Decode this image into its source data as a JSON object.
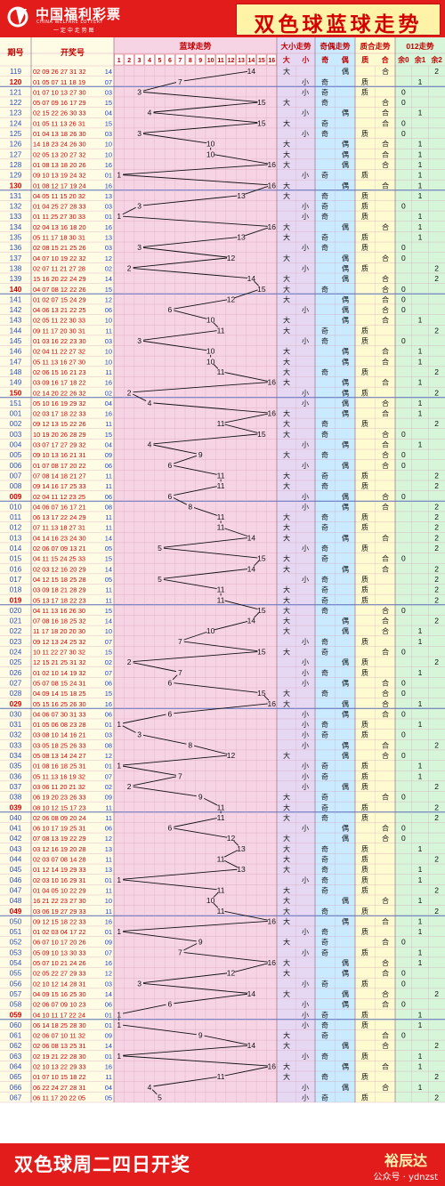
{
  "brand": {
    "name_cn": "中国福利彩票",
    "name_en": "CHINA WELFARE LOTTERY",
    "tagline": "一 定 中 走 势 图"
  },
  "title": "双色球蓝球走势",
  "footer": {
    "text": "双色球周二四日开奖",
    "brand": "裕辰达",
    "wechat": "公众号 · ydnzst"
  },
  "colors": {
    "red": "#e21b1b",
    "pink": "#f6d4e4",
    "blue_zone": "#dbe0ff",
    "lav": "#e6d8f3",
    "sky": "#c9eaff",
    "yellow": "#fffbd0",
    "green": "#d6f5d9",
    "line": "#111111"
  },
  "chart_data": {
    "type": "table",
    "columns": {
      "issue": "期号",
      "numbers": "开奖号",
      "blue": "蓝球走势",
      "size": "大小走势",
      "parity": "奇偶走势",
      "primality": "质合走势",
      "mod3": "012走势"
    },
    "sub_headers": {
      "blue": [
        "1",
        "2",
        "3",
        "4",
        "5",
        "6",
        "7",
        "8",
        "9",
        "10",
        "11",
        "12",
        "13",
        "14",
        "15",
        "16"
      ],
      "size": [
        "大",
        "小"
      ],
      "parity": [
        "奇",
        "偶"
      ],
      "primality": [
        "质",
        "合"
      ],
      "mod3": [
        "余0",
        "余1",
        "余2"
      ]
    },
    "labels": {
      "big": "大",
      "small": "小",
      "odd": "奇",
      "even": "偶",
      "prime": "质",
      "composite": "合",
      "r0": "0",
      "r1": "1",
      "r2": "2"
    },
    "rows": [
      [
        "119",
        "02 09 26 27 31 32",
        14
      ],
      [
        "120",
        "01 05 07 11 18 19",
        7
      ],
      [
        "121",
        "01 07 10 13 27 30",
        3
      ],
      [
        "122",
        "05 07 09 16 17 29",
        15
      ],
      [
        "123",
        "02 15 22 26 30 33",
        4
      ],
      [
        "124",
        "01 05 11 13 26 31",
        15
      ],
      [
        "125",
        "01 04 13 18 26 30",
        3
      ],
      [
        "126",
        "14 18 23 24 26 30",
        10
      ],
      [
        "127",
        "02 05 13 20 27 32",
        10
      ],
      [
        "128",
        "01 08 13 18 20 26",
        16
      ],
      [
        "129",
        "09 10 13 19 24 32",
        1
      ],
      [
        "130",
        "01 08 12 17 19 24",
        16
      ],
      [
        "131",
        "04 05 11 15 20 32",
        13
      ],
      [
        "132",
        "01 04 25 27 28 33",
        3
      ],
      [
        "133",
        "01 11 25 27 30 33",
        1
      ],
      [
        "134",
        "02 04 13 16 18 20",
        16
      ],
      [
        "135",
        "05 11 17 18 30 31",
        13
      ],
      [
        "136",
        "02 08 15 21 25 26",
        3
      ],
      [
        "137",
        "04 07 10 19 22 32",
        12
      ],
      [
        "138",
        "02 07 11 21 27 28",
        2
      ],
      [
        "139",
        "15 16 20 22 24 29",
        14
      ],
      [
        "140",
        "04 07 08 12 22 26",
        15
      ],
      [
        "141",
        "01 02 07 15 24 29",
        12
      ],
      [
        "142",
        "04 06 13 21 22 25",
        6
      ],
      [
        "143",
        "02 05 11 22 30 33",
        10
      ],
      [
        "144",
        "09 11 17 20 30 31",
        11
      ],
      [
        "145",
        "01 03 16 22 23 30",
        3
      ],
      [
        "146",
        "02 04 11 22 27 32",
        10
      ],
      [
        "147",
        "05 11 13 16 27 30",
        10
      ],
      [
        "148",
        "02 06 15 16 21 23",
        11
      ],
      [
        "149",
        "03 09 16 17 18 22",
        16
      ],
      [
        "150",
        "02 14 20 22 26 32",
        2
      ],
      [
        "151",
        "05 10 16 19 29 32",
        4
      ],
      [
        "001",
        "02 03 17 18 22 33",
        16
      ],
      [
        "002",
        "09 12 13 15 22 26",
        11
      ],
      [
        "003",
        "10 19 20 26 28 29",
        15
      ],
      [
        "004",
        "03 07 17 27 29 32",
        4
      ],
      [
        "005",
        "09 10 13 16 21 31",
        9
      ],
      [
        "006",
        "01 07 08 17 20 22",
        6
      ],
      [
        "007",
        "07 08 14 18 21 27",
        11
      ],
      [
        "008",
        "09 14 16 17 25 33",
        11
      ],
      [
        "009",
        "02 04 11 12 23 25",
        6
      ],
      [
        "010",
        "04 06 07 16 17 21",
        8
      ],
      [
        "011",
        "06 13 17 22 24 29",
        11
      ],
      [
        "012",
        "07 11 13 18 27 31",
        11
      ],
      [
        "013",
        "04 14 16 23 24 30",
        14
      ],
      [
        "014",
        "02 06 07 09 13 21",
        5
      ],
      [
        "015",
        "04 11 15 24 25 33",
        15
      ],
      [
        "016",
        "02 03 12 16 20 29",
        14
      ],
      [
        "017",
        "04 12 15 18 25 28",
        5
      ],
      [
        "018",
        "03 09 18 21 28 29",
        11
      ],
      [
        "019",
        "05 13 17 18 22 23",
        11
      ],
      [
        "020",
        "04 11 13 16 26 30",
        15
      ],
      [
        "021",
        "07 08 16 18 25 32",
        14
      ],
      [
        "022",
        "11 17 18 20 20 30",
        10
      ],
      [
        "023",
        "09 12 13 24 25 32",
        7
      ],
      [
        "024",
        "10 11 22 27 30 32",
        15
      ],
      [
        "025",
        "12 15 21 25 31 32",
        2
      ],
      [
        "026",
        "01 02 10 14 19 32",
        7
      ],
      [
        "027",
        "05 07 08 15 24 31",
        6
      ],
      [
        "028",
        "04 09 14 15 18 25",
        15
      ],
      [
        "029",
        "05 15 16 25 26 30",
        16
      ],
      [
        "030",
        "04 06 07 30 31 33",
        6
      ],
      [
        "031",
        "01 05 06 08 23 28",
        1
      ],
      [
        "032",
        "03 08 10 14 16 21",
        3
      ],
      [
        "033",
        "03 05 18 25 26 33",
        8
      ],
      [
        "034",
        "05 08 13 14 24 27",
        12
      ],
      [
        "035",
        "01 08 16 18 25 31",
        1
      ],
      [
        "036",
        "05 11 13 16 19 32",
        7
      ],
      [
        "037",
        "03 06 11 20 21 32",
        2
      ],
      [
        "038",
        "06 19 20 23 26 33",
        9
      ],
      [
        "039",
        "08 10 12 15 17 23",
        11
      ],
      [
        "040",
        "02 06 08 09 20 24",
        11
      ],
      [
        "041",
        "06 10 17 19 25 31",
        6
      ],
      [
        "042",
        "07 08 13 19 22 29",
        12
      ],
      [
        "043",
        "03 12 16 19 20 28",
        13
      ],
      [
        "044",
        "02 03 07 08 14 28",
        11
      ],
      [
        "045",
        "01 12 14 19 29 33",
        13
      ],
      [
        "046",
        "02 03 10 16 29 31",
        1
      ],
      [
        "047",
        "01 04 05 10 22 29",
        11
      ],
      [
        "048",
        "16 21 22 23 27 30",
        10
      ],
      [
        "049",
        "03 06 19 27 29 33",
        11
      ],
      [
        "050",
        "09 12 15 18 22 33",
        16
      ],
      [
        "051",
        "01 02 03 04 17 22",
        1
      ],
      [
        "052",
        "06 07 10 17 20 26",
        9
      ],
      [
        "053",
        "05 09 10 13 30 33",
        7
      ],
      [
        "054",
        "05 07 10 21 24 26",
        16
      ],
      [
        "055",
        "02 05 22 27 29 33",
        12
      ],
      [
        "056",
        "02 10 12 14 28 31",
        3
      ],
      [
        "057",
        "04 09 15 16 25 30",
        14
      ],
      [
        "058",
        "02 06 07 09 10 23",
        6
      ],
      [
        "059",
        "04 10 11 17 22 24",
        1
      ],
      [
        "060",
        "06 14 18 25 28 30",
        1
      ],
      [
        "061",
        "02 06 07 10 11 32",
        9
      ],
      [
        "062",
        "02 06 08 13 25 31",
        14
      ],
      [
        "063",
        "02 19 21 22 28 30",
        1
      ],
      [
        "064",
        "02 10 13 22 29 33",
        16
      ],
      [
        "065",
        "01 07 10 15 18 22",
        11
      ],
      [
        "066",
        "06 22 24 27 28 31",
        4
      ],
      [
        "067",
        "06 11 17 20 22 05",
        5
      ]
    ]
  }
}
